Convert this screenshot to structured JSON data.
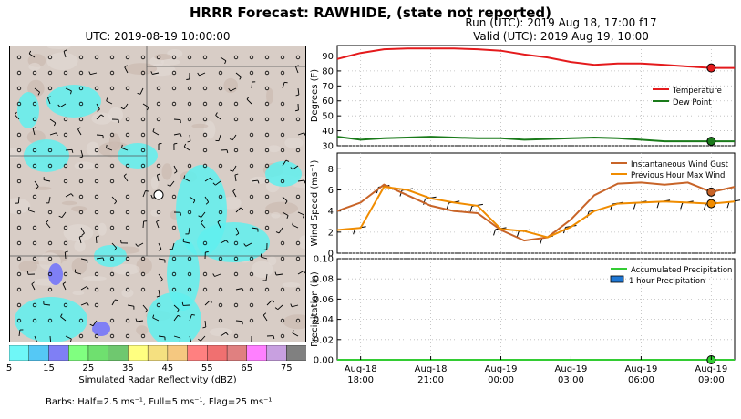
{
  "title": "HRRR Forecast: RAWHIDE, (state not reported)",
  "map": {
    "title": "UTC: 2019-08-19 10:00:00",
    "colorbar_label": "Simulated Radar Reflectivity (dBZ)",
    "colorbar_ticks": [
      "5",
      "15",
      "25",
      "35",
      "45",
      "55",
      "65",
      "75"
    ],
    "colorbar_colors": [
      "#6ff7f7",
      "#55c8f5",
      "#7f7ff5",
      "#80ff80",
      "#6fe06f",
      "#6fc86f",
      "#ffff80",
      "#f5e080",
      "#f5c880",
      "#ff8080",
      "#f07070",
      "#e08080",
      "#ff80ff",
      "#c8a0e0",
      "#808080"
    ],
    "barbs_note": "Barbs: Half=2.5 ms⁻¹, Full=5 ms⁻¹, Flag=25 ms⁻¹"
  },
  "run": {
    "line1": "Run (UTC): 2019 Aug 18, 17:00 f17",
    "line2": "Valid (UTC): 2019 Aug 19, 10:00"
  },
  "chart_data": [
    {
      "type": "line",
      "ylabel": "Degrees (F)",
      "ylim": [
        30,
        97
      ],
      "yticks": [
        30,
        40,
        50,
        60,
        70,
        80,
        90
      ],
      "grid": true,
      "legend": "right",
      "x_hours": [
        0,
        1,
        2,
        3,
        4,
        5,
        6,
        7,
        8,
        9,
        10,
        11,
        12,
        13,
        14,
        15,
        16,
        17
      ],
      "series": [
        {
          "name": "Temperature",
          "color": "#e41a1c",
          "values": [
            88,
            92,
            94.5,
            95,
            95,
            95,
            94.5,
            93.5,
            91,
            89,
            86,
            84,
            85,
            85,
            84,
            83,
            82,
            82
          ]
        },
        {
          "name": "Dew Point",
          "color": "#1a7a1a",
          "values": [
            36,
            34,
            35,
            35.5,
            36,
            35.5,
            35,
            35,
            34,
            34.5,
            35,
            35.5,
            35,
            34,
            33,
            33,
            33,
            33
          ]
        }
      ],
      "marker_hour": 16
    },
    {
      "type": "line",
      "ylabel": "Wind Speed (ms⁻¹)",
      "ylim": [
        0,
        9.5
      ],
      "yticks": [
        0,
        2,
        4,
        6,
        8
      ],
      "grid": true,
      "legend": "top-right",
      "x_hours": [
        0,
        1,
        2,
        3,
        4,
        5,
        6,
        7,
        8,
        9,
        10,
        11,
        12,
        13,
        14,
        15,
        16,
        17
      ],
      "series": [
        {
          "name": "Instantaneous Wind Gust",
          "color": "#c86428",
          "values": [
            4,
            4.8,
            6.5,
            5.5,
            4.5,
            4,
            3.8,
            2.2,
            1.2,
            1.5,
            3.2,
            5.5,
            6.6,
            6.7,
            6.5,
            6.7,
            5.8,
            6.3
          ]
        },
        {
          "name": "Previous Hour Max Wind",
          "color": "#f08c00",
          "values": [
            2.2,
            2.4,
            6.3,
            6.0,
            5.2,
            4.8,
            4.5,
            2.3,
            2.1,
            1.5,
            2.5,
            4.0,
            4.7,
            4.8,
            4.9,
            4.8,
            4.7,
            4.9
          ]
        }
      ],
      "marker_hour": 16
    },
    {
      "type": "line",
      "ylabel": "Precipitation (in)",
      "ylim": [
        0,
        0.1
      ],
      "yticks": [
        0.0,
        0.02,
        0.04,
        0.06,
        0.08,
        0.1
      ],
      "grid": true,
      "legend": "top-right",
      "xticks": [
        {
          "hour": 1,
          "label1": "Aug-18",
          "label2": "18:00"
        },
        {
          "hour": 4,
          "label1": "Aug-18",
          "label2": "21:00"
        },
        {
          "hour": 7,
          "label1": "Aug-19",
          "label2": "00:00"
        },
        {
          "hour": 10,
          "label1": "Aug-19",
          "label2": "03:00"
        },
        {
          "hour": 13,
          "label1": "Aug-19",
          "label2": "06:00"
        },
        {
          "hour": 16,
          "label1": "Aug-19",
          "label2": "09:00"
        }
      ],
      "series": [
        {
          "name": "Accumulated Precipitation",
          "color": "#33cc33",
          "values": [
            0,
            0,
            0,
            0,
            0,
            0,
            0,
            0,
            0,
            0,
            0,
            0,
            0,
            0,
            0,
            0,
            0,
            0
          ]
        },
        {
          "name": "1 hour Precipitation",
          "color": "#1f77d4",
          "values": [
            0,
            0,
            0,
            0,
            0,
            0,
            0,
            0,
            0,
            0,
            0,
            0,
            0,
            0,
            0,
            0,
            0,
            0
          ]
        }
      ],
      "marker_hour": 16
    }
  ]
}
